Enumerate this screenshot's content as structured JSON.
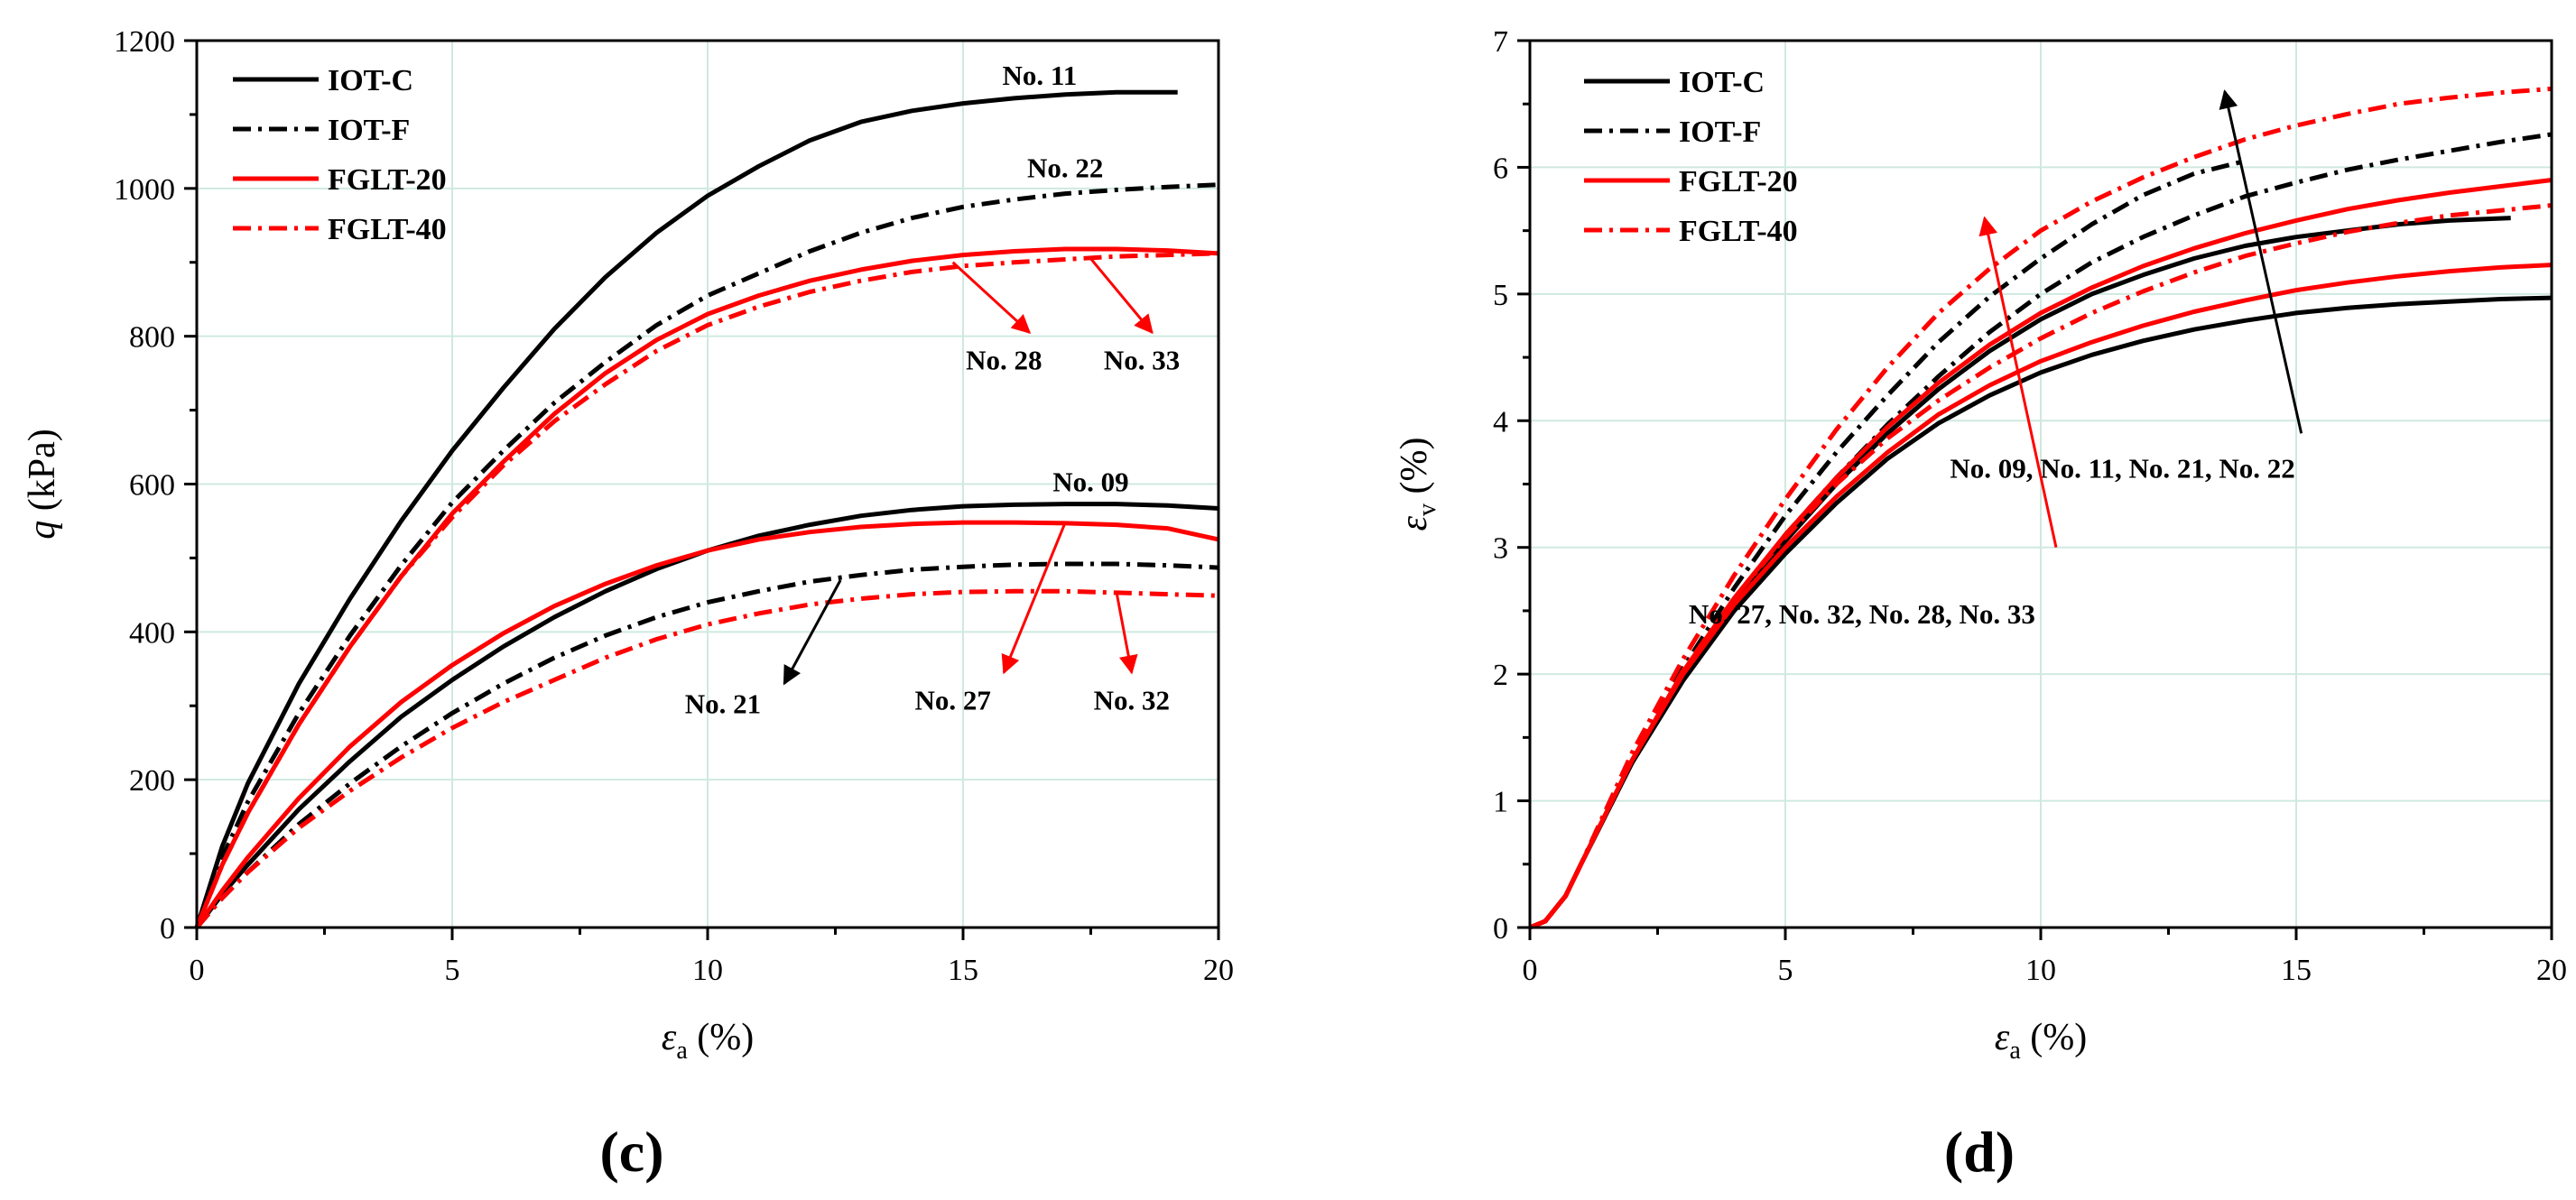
{
  "chart_data": [
    {
      "type": "line",
      "panel": "(c)",
      "xlabel": "ε_a (%)",
      "ylabel": "q (kPa)",
      "xlabel_main": "ε",
      "xlabel_sub": "a",
      "xlabel_unit": " (%)",
      "ylabel_main": "q",
      "ylabel_unit": " (kPa)",
      "xlim": [
        0,
        20
      ],
      "ylim": [
        0,
        1200
      ],
      "xticks": [
        0,
        5,
        10,
        15,
        20
      ],
      "yticks": [
        0,
        200,
        400,
        600,
        800,
        1000,
        1200
      ],
      "grid": true,
      "legend": "top-left",
      "legend_entries": [
        {
          "label": "IOT-C",
          "color": "#000000",
          "style": "solid"
        },
        {
          "label": "IOT-F",
          "color": "#000000",
          "style": "dashdot"
        },
        {
          "label": "FGLT-20",
          "color": "#ff0000",
          "style": "solid"
        },
        {
          "label": "FGLT-40",
          "color": "#ff0000",
          "style": "dashdot"
        }
      ],
      "series": [
        {
          "name": "No. 11",
          "group": "IOT-C",
          "color": "#000000",
          "style": "solid",
          "x": [
            0,
            0.5,
            1,
            2,
            3,
            4,
            5,
            6,
            7,
            8,
            9,
            10,
            11,
            12,
            13,
            14,
            15,
            16,
            17,
            18,
            19.2
          ],
          "y": [
            0,
            110,
            195,
            330,
            445,
            550,
            645,
            730,
            810,
            880,
            940,
            990,
            1030,
            1065,
            1090,
            1105,
            1115,
            1122,
            1127,
            1130,
            1130
          ]
        },
        {
          "name": "No. 22",
          "group": "IOT-F",
          "color": "#000000",
          "style": "dashdot",
          "x": [
            0,
            0.5,
            1,
            2,
            3,
            4,
            5,
            6,
            7,
            8,
            9,
            10,
            11,
            12,
            13,
            14,
            15,
            16,
            17,
            18,
            19,
            20
          ],
          "y": [
            0,
            95,
            170,
            290,
            395,
            490,
            575,
            645,
            710,
            765,
            815,
            855,
            885,
            915,
            940,
            960,
            975,
            985,
            993,
            998,
            1002,
            1005
          ]
        },
        {
          "name": "No. 28",
          "group": "FGLT-20",
          "color": "#ff0000",
          "style": "solid",
          "x": [
            0,
            0.5,
            1,
            2,
            3,
            4,
            5,
            6,
            7,
            8,
            9,
            10,
            11,
            12,
            13,
            14,
            15,
            16,
            17,
            18,
            19,
            20
          ],
          "y": [
            0,
            85,
            155,
            275,
            380,
            475,
            560,
            630,
            695,
            750,
            795,
            830,
            855,
            875,
            890,
            902,
            910,
            915,
            918,
            918,
            916,
            912
          ]
        },
        {
          "name": "No. 33",
          "group": "FGLT-40",
          "color": "#ff0000",
          "style": "dashdot",
          "x": [
            0,
            0.5,
            1,
            2,
            3,
            4,
            5,
            6,
            7,
            8,
            9,
            10,
            11,
            12,
            13,
            14,
            15,
            16,
            17,
            18,
            19,
            20
          ],
          "y": [
            0,
            85,
            155,
            275,
            380,
            475,
            555,
            625,
            685,
            735,
            780,
            815,
            840,
            860,
            875,
            887,
            895,
            900,
            904,
            908,
            910,
            912
          ]
        },
        {
          "name": "No. 09",
          "group": "IOT-C",
          "color": "#000000",
          "style": "solid",
          "x": [
            0,
            0.5,
            1,
            2,
            3,
            4,
            5,
            6,
            7,
            8,
            9,
            10,
            11,
            12,
            13,
            14,
            15,
            16,
            17,
            18,
            19,
            20
          ],
          "y": [
            0,
            45,
            85,
            160,
            225,
            285,
            335,
            380,
            420,
            455,
            485,
            510,
            530,
            545,
            557,
            565,
            570,
            572,
            573,
            573,
            571,
            567
          ]
        },
        {
          "name": "No. 21",
          "group": "IOT-F",
          "color": "#000000",
          "style": "dashdot",
          "x": [
            0,
            0.5,
            1,
            2,
            3,
            4,
            5,
            6,
            7,
            8,
            9,
            10,
            11,
            12,
            13,
            14,
            15,
            16,
            17,
            18,
            19,
            20
          ],
          "y": [
            0,
            40,
            75,
            140,
            195,
            245,
            290,
            330,
            365,
            395,
            420,
            440,
            455,
            468,
            477,
            484,
            488,
            491,
            492,
            492,
            490,
            487
          ]
        },
        {
          "name": "No. 27",
          "group": "FGLT-20",
          "color": "#ff0000",
          "style": "solid",
          "x": [
            0,
            0.5,
            1,
            2,
            3,
            4,
            5,
            6,
            7,
            8,
            9,
            10,
            11,
            12,
            13,
            14,
            15,
            16,
            17,
            18,
            19,
            20
          ],
          "y": [
            0,
            50,
            95,
            175,
            245,
            305,
            355,
            398,
            435,
            465,
            490,
            510,
            525,
            535,
            542,
            546,
            548,
            548,
            547,
            545,
            540,
            525
          ]
        },
        {
          "name": "No. 32",
          "group": "FGLT-40",
          "color": "#ff0000",
          "style": "dashdot",
          "x": [
            0,
            0.5,
            1,
            2,
            3,
            4,
            5,
            6,
            7,
            8,
            9,
            10,
            11,
            12,
            13,
            14,
            15,
            16,
            17,
            18,
            19,
            20
          ],
          "y": [
            0,
            40,
            75,
            135,
            185,
            230,
            270,
            305,
            335,
            365,
            390,
            410,
            425,
            437,
            445,
            451,
            454,
            455,
            455,
            453,
            451,
            449
          ]
        }
      ],
      "annotations": [
        {
          "text": "No. 11",
          "x": 16.5,
          "y": 1140
        },
        {
          "text": "No. 22",
          "x": 17,
          "y": 1015
        },
        {
          "text": "No. 28",
          "x": 15.8,
          "y": 755,
          "arrow_from": [
            14.8,
            900
          ],
          "arrow_to": [
            16.3,
            805
          ],
          "color": "#ff0000"
        },
        {
          "text": "No. 33",
          "x": 18.5,
          "y": 755,
          "arrow_from": [
            17.5,
            905
          ],
          "arrow_to": [
            18.7,
            805
          ],
          "color": "#ff0000"
        },
        {
          "text": "No. 09",
          "x": 17.5,
          "y": 590
        },
        {
          "text": "No. 21",
          "x": 10.3,
          "y": 290,
          "arrow_from": [
            12.6,
            470
          ],
          "arrow_to": [
            11.5,
            330
          ],
          "color": "#000000"
        },
        {
          "text": "No. 27",
          "x": 14.8,
          "y": 295,
          "arrow_from": [
            17,
            548
          ],
          "arrow_to": [
            15.8,
            345
          ],
          "color": "#ff0000"
        },
        {
          "text": "No. 32",
          "x": 18.3,
          "y": 295,
          "arrow_from": [
            18,
            455
          ],
          "arrow_to": [
            18.3,
            345
          ],
          "color": "#ff0000"
        }
      ]
    },
    {
      "type": "line",
      "panel": "(d)",
      "xlabel": "ε_a (%)",
      "ylabel": "ε_v (%)",
      "xlabel_main": "ε",
      "xlabel_sub": "a",
      "xlabel_unit": " (%)",
      "ylabel_main": "ε",
      "ylabel_sub": "v",
      "ylabel_unit": " (%)",
      "xlim": [
        0,
        20
      ],
      "ylim": [
        0,
        7
      ],
      "xticks": [
        0,
        5,
        10,
        15,
        20
      ],
      "yticks": [
        0,
        1,
        2,
        3,
        4,
        5,
        6,
        7
      ],
      "grid": true,
      "legend": "top-left",
      "legend_entries": [
        {
          "label": "IOT-C",
          "color": "#000000",
          "style": "solid"
        },
        {
          "label": "IOT-F",
          "color": "#000000",
          "style": "dashdot"
        },
        {
          "label": "FGLT-20",
          "color": "#ff0000",
          "style": "solid"
        },
        {
          "label": "FGLT-40",
          "color": "#ff0000",
          "style": "dashdot"
        }
      ],
      "series": [
        {
          "name": "No. 09",
          "group": "IOT-C",
          "color": "#000000",
          "style": "solid",
          "x": [
            0,
            0.3,
            0.7,
            1,
            2,
            3,
            4,
            5,
            6,
            7,
            8,
            9,
            10,
            11,
            12,
            13,
            14,
            15,
            16,
            17,
            18,
            19,
            20
          ],
          "y": [
            0,
            0.05,
            0.25,
            0.5,
            1.3,
            1.95,
            2.5,
            2.95,
            3.35,
            3.7,
            3.98,
            4.2,
            4.38,
            4.52,
            4.63,
            4.72,
            4.79,
            4.85,
            4.89,
            4.92,
            4.94,
            4.96,
            4.97
          ]
        },
        {
          "name": "No. 11",
          "group": "IOT-C",
          "color": "#000000",
          "style": "solid",
          "x": [
            0,
            0.3,
            0.7,
            1,
            2,
            3,
            4,
            5,
            6,
            7,
            8,
            9,
            10,
            11,
            12,
            13,
            14,
            15,
            16,
            17,
            18,
            19.2
          ],
          "y": [
            0,
            0.05,
            0.25,
            0.5,
            1.3,
            1.98,
            2.55,
            3.05,
            3.5,
            3.9,
            4.25,
            4.55,
            4.8,
            5.0,
            5.15,
            5.28,
            5.38,
            5.45,
            5.5,
            5.55,
            5.58,
            5.6
          ]
        },
        {
          "name": "No. 21",
          "group": "IOT-F",
          "color": "#000000",
          "style": "dashdot",
          "x": [
            0,
            0.3,
            0.7,
            1,
            2,
            3,
            4,
            5,
            6,
            7,
            8,
            9,
            10,
            11,
            12,
            13,
            14
          ],
          "y": [
            0,
            0.05,
            0.25,
            0.5,
            1.35,
            2.05,
            2.68,
            3.25,
            3.75,
            4.2,
            4.62,
            4.98,
            5.28,
            5.55,
            5.78,
            5.95,
            6.05
          ]
        },
        {
          "name": "No. 22",
          "group": "IOT-F",
          "color": "#000000",
          "style": "dashdot",
          "x": [
            0,
            0.3,
            0.7,
            1,
            2,
            3,
            4,
            5,
            6,
            7,
            8,
            9,
            10,
            11,
            12,
            13,
            14,
            15,
            16,
            17,
            18,
            19,
            20
          ],
          "y": [
            0,
            0.05,
            0.25,
            0.5,
            1.3,
            2.0,
            2.58,
            3.1,
            3.55,
            3.97,
            4.35,
            4.7,
            5.0,
            5.25,
            5.45,
            5.62,
            5.77,
            5.88,
            5.98,
            6.06,
            6.13,
            6.2,
            6.26
          ]
        },
        {
          "name": "No. 27",
          "group": "FGLT-20",
          "color": "#ff0000",
          "style": "solid",
          "x": [
            0,
            0.3,
            0.7,
            1,
            2,
            3,
            4,
            5,
            6,
            7,
            8,
            9,
            10,
            11,
            12,
            13,
            14,
            15,
            16,
            17,
            18,
            19,
            20
          ],
          "y": [
            0,
            0.05,
            0.25,
            0.5,
            1.32,
            2.0,
            2.55,
            3.0,
            3.4,
            3.75,
            4.05,
            4.28,
            4.47,
            4.62,
            4.75,
            4.86,
            4.95,
            5.03,
            5.09,
            5.14,
            5.18,
            5.21,
            5.23
          ]
        },
        {
          "name": "No. 28",
          "group": "FGLT-20",
          "color": "#ff0000",
          "style": "solid",
          "x": [
            0,
            0.3,
            0.7,
            1,
            2,
            3,
            4,
            5,
            6,
            7,
            8,
            9,
            10,
            11,
            12,
            13,
            14,
            15,
            16,
            17,
            18,
            19,
            20
          ],
          "y": [
            0,
            0.05,
            0.25,
            0.5,
            1.32,
            2.02,
            2.6,
            3.1,
            3.55,
            3.95,
            4.3,
            4.6,
            4.85,
            5.05,
            5.22,
            5.36,
            5.48,
            5.58,
            5.67,
            5.74,
            5.8,
            5.85,
            5.9
          ]
        },
        {
          "name": "No. 32",
          "group": "FGLT-40",
          "color": "#ff0000",
          "style": "dashdot",
          "x": [
            0,
            0.3,
            0.7,
            1,
            2,
            3,
            4,
            5,
            6,
            7,
            8,
            9,
            10,
            11,
            12,
            13,
            14,
            15,
            16,
            17,
            18,
            19,
            20
          ],
          "y": [
            0,
            0.05,
            0.25,
            0.5,
            1.33,
            2.03,
            2.6,
            3.08,
            3.5,
            3.86,
            4.16,
            4.42,
            4.65,
            4.85,
            5.02,
            5.17,
            5.3,
            5.4,
            5.49,
            5.56,
            5.62,
            5.66,
            5.7
          ]
        },
        {
          "name": "No. 33",
          "group": "FGLT-40",
          "color": "#ff0000",
          "style": "dashdot",
          "x": [
            0,
            0.3,
            0.7,
            1,
            2,
            3,
            4,
            5,
            6,
            7,
            8,
            9,
            10,
            11,
            12,
            13,
            14,
            15,
            16,
            17,
            18,
            19,
            20
          ],
          "y": [
            0,
            0.05,
            0.25,
            0.5,
            1.38,
            2.12,
            2.78,
            3.38,
            3.93,
            4.42,
            4.85,
            5.2,
            5.5,
            5.73,
            5.92,
            6.08,
            6.22,
            6.33,
            6.42,
            6.5,
            6.55,
            6.59,
            6.62
          ]
        }
      ],
      "annotations": [
        {
          "text": "No. 09, No. 11, No. 21, No. 22",
          "x": 11.6,
          "y": 3.55,
          "arrow_from": [
            15.1,
            3.9
          ],
          "arrow_to": [
            13.6,
            6.6
          ],
          "color": "#000000"
        },
        {
          "text": "No. 27, No. 32, No. 28, No. 33",
          "x": 6.5,
          "y": 2.4,
          "arrow_from": [
            10.3,
            3.0
          ],
          "arrow_to": [
            8.9,
            5.6
          ],
          "color": "#ff0000"
        }
      ]
    }
  ]
}
